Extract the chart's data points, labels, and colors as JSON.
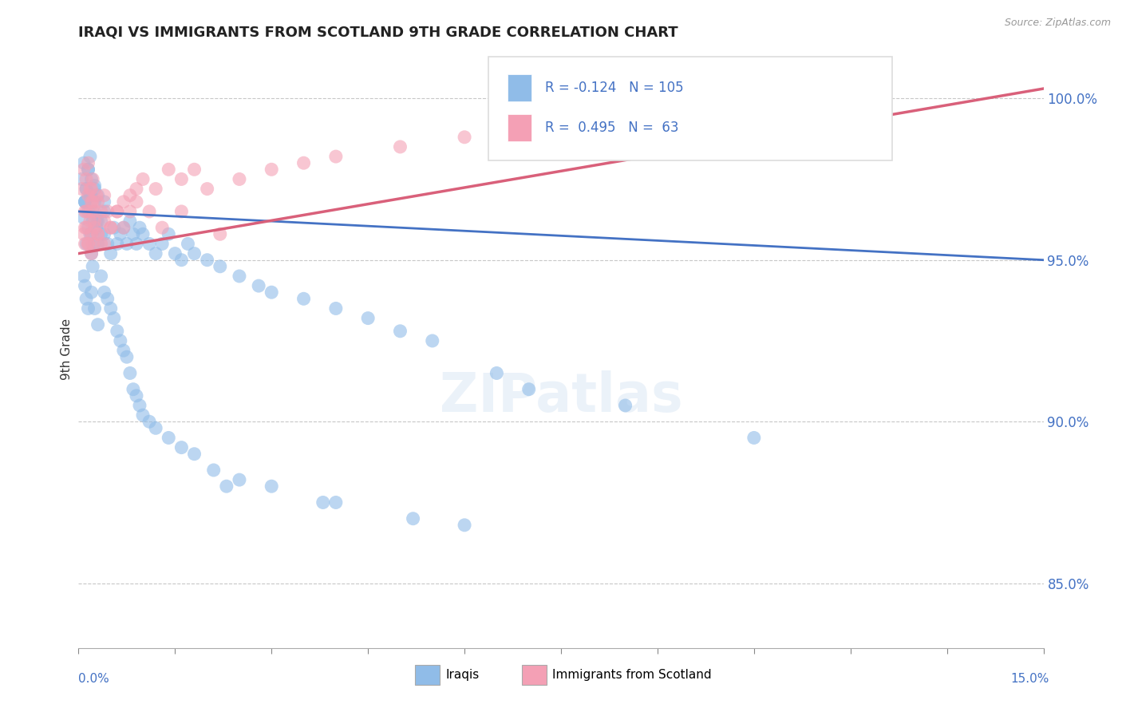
{
  "title": "IRAQI VS IMMIGRANTS FROM SCOTLAND 9TH GRADE CORRELATION CHART",
  "source": "Source: ZipAtlas.com",
  "ylabel": "9th Grade",
  "xlim": [
    0.0,
    15.0
  ],
  "ylim": [
    83.0,
    101.5
  ],
  "yticks": [
    85.0,
    90.0,
    95.0,
    100.0
  ],
  "ytick_labels": [
    "85.0%",
    "90.0%",
    "95.0%",
    "100.0%"
  ],
  "r_blue": -0.124,
  "n_blue": 105,
  "r_pink": 0.495,
  "n_pink": 63,
  "blue_color": "#90bce8",
  "pink_color": "#f4a0b5",
  "blue_line_color": "#4472c4",
  "pink_line_color": "#d9607a",
  "legend_label_blue": "Iraqis",
  "legend_label_pink": "Immigrants from Scotland",
  "blue_line_x0": 0.0,
  "blue_line_y0": 96.5,
  "blue_line_x1": 15.0,
  "blue_line_y1": 95.0,
  "pink_line_x0": 0.0,
  "pink_line_y0": 95.2,
  "pink_line_x1": 15.0,
  "pink_line_y1": 100.3,
  "blue_points_x": [
    0.05,
    0.08,
    0.1,
    0.12,
    0.15,
    0.18,
    0.2,
    0.22,
    0.25,
    0.28,
    0.1,
    0.12,
    0.15,
    0.18,
    0.2,
    0.22,
    0.25,
    0.3,
    0.35,
    0.4,
    0.08,
    0.1,
    0.12,
    0.15,
    0.18,
    0.2,
    0.22,
    0.25,
    0.28,
    0.3,
    0.35,
    0.4,
    0.45,
    0.5,
    0.55,
    0.6,
    0.65,
    0.7,
    0.75,
    0.8,
    0.85,
    0.9,
    0.95,
    1.0,
    1.1,
    1.2,
    1.3,
    1.4,
    1.5,
    1.6,
    1.7,
    1.8,
    2.0,
    2.2,
    2.5,
    2.8,
    3.0,
    3.5,
    4.0,
    4.5,
    5.0,
    5.5,
    6.5,
    7.0,
    8.5,
    10.5,
    0.08,
    0.1,
    0.12,
    0.15,
    0.2,
    0.25,
    0.3,
    0.35,
    0.4,
    0.45,
    0.5,
    0.55,
    0.6,
    0.65,
    0.7,
    0.75,
    0.8,
    0.85,
    0.9,
    0.95,
    1.0,
    1.1,
    1.2,
    1.4,
    1.6,
    1.8,
    2.1,
    2.5,
    3.0,
    4.0,
    5.2,
    6.0,
    3.8,
    2.3,
    0.15,
    0.2,
    0.25,
    0.3,
    0.4
  ],
  "blue_points_y": [
    97.5,
    98.0,
    96.8,
    97.2,
    97.8,
    98.2,
    97.0,
    96.5,
    97.3,
    96.2,
    96.8,
    95.5,
    96.0,
    95.8,
    95.2,
    94.8,
    95.5,
    96.2,
    95.8,
    96.5,
    96.3,
    96.8,
    97.2,
    96.5,
    97.0,
    95.8,
    96.2,
    96.8,
    96.0,
    95.5,
    96.2,
    95.8,
    95.5,
    95.2,
    96.0,
    95.5,
    95.8,
    96.0,
    95.5,
    96.2,
    95.8,
    95.5,
    96.0,
    95.8,
    95.5,
    95.2,
    95.5,
    95.8,
    95.2,
    95.0,
    95.5,
    95.2,
    95.0,
    94.8,
    94.5,
    94.2,
    94.0,
    93.8,
    93.5,
    93.2,
    92.8,
    92.5,
    91.5,
    91.0,
    90.5,
    89.5,
    94.5,
    94.2,
    93.8,
    93.5,
    94.0,
    93.5,
    93.0,
    94.5,
    94.0,
    93.8,
    93.5,
    93.2,
    92.8,
    92.5,
    92.2,
    92.0,
    91.5,
    91.0,
    90.8,
    90.5,
    90.2,
    90.0,
    89.8,
    89.5,
    89.2,
    89.0,
    88.5,
    88.2,
    88.0,
    87.5,
    87.0,
    86.8,
    87.5,
    88.0,
    97.8,
    97.5,
    97.2,
    97.0,
    96.8
  ],
  "pink_points_x": [
    0.05,
    0.08,
    0.1,
    0.12,
    0.15,
    0.18,
    0.2,
    0.22,
    0.25,
    0.28,
    0.1,
    0.12,
    0.15,
    0.18,
    0.2,
    0.22,
    0.25,
    0.3,
    0.35,
    0.4,
    0.08,
    0.1,
    0.12,
    0.15,
    0.18,
    0.2,
    0.22,
    0.25,
    0.3,
    0.35,
    0.4,
    0.45,
    0.5,
    0.6,
    0.7,
    0.8,
    0.9,
    1.0,
    1.2,
    1.4,
    1.6,
    1.8,
    2.0,
    2.5,
    3.0,
    3.5,
    4.0,
    5.0,
    6.0,
    8.5,
    0.15,
    0.2,
    0.3,
    0.4,
    0.5,
    0.6,
    0.7,
    0.8,
    0.9,
    1.1,
    1.3,
    1.6,
    2.2
  ],
  "pink_points_y": [
    97.2,
    97.8,
    96.5,
    97.5,
    98.0,
    97.2,
    96.8,
    97.5,
    96.5,
    97.0,
    96.0,
    96.5,
    97.0,
    96.5,
    97.2,
    96.8,
    96.2,
    96.8,
    96.5,
    97.0,
    95.8,
    95.5,
    96.0,
    95.5,
    96.2,
    95.8,
    95.5,
    96.0,
    95.8,
    95.5,
    96.2,
    96.5,
    96.0,
    96.5,
    96.8,
    97.0,
    97.2,
    97.5,
    97.2,
    97.8,
    97.5,
    97.8,
    97.2,
    97.5,
    97.8,
    98.0,
    98.2,
    98.5,
    98.8,
    99.8,
    95.5,
    95.2,
    95.8,
    95.5,
    96.0,
    96.5,
    96.0,
    96.5,
    96.8,
    96.5,
    96.0,
    96.5,
    95.8
  ]
}
